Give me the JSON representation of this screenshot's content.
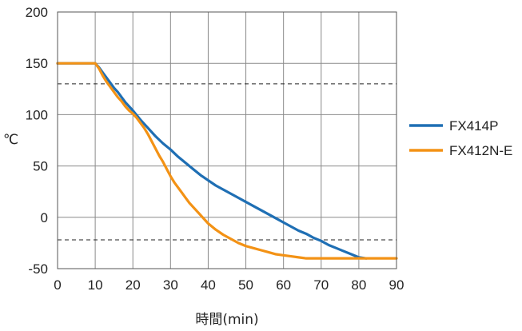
{
  "chart_data": {
    "type": "line",
    "title": "",
    "xlabel": "時間(min)",
    "ylabel": "℃",
    "xlim": [
      0,
      90
    ],
    "ylim": [
      -50,
      200
    ],
    "xticks": [
      0,
      10,
      20,
      30,
      40,
      50,
      60,
      70,
      80,
      90
    ],
    "yticks": [
      -50,
      0,
      50,
      100,
      150,
      200
    ],
    "xtick_labels": [
      "0",
      "10",
      "20",
      "30",
      "40",
      "50",
      "60",
      "70",
      "80",
      "90"
    ],
    "ytick_labels": [
      "-50",
      "0",
      "50",
      "100",
      "150",
      "200"
    ],
    "grid": true,
    "legend_position": "right",
    "reference_lines": [
      130,
      -22
    ],
    "series": [
      {
        "name": "FX414P",
        "color": "#1f6fb4",
        "x": [
          0,
          10,
          11,
          12,
          13,
          14,
          15,
          16,
          17,
          18,
          19,
          20,
          22,
          24,
          26,
          28,
          30,
          32,
          34,
          36,
          38,
          40,
          42,
          44,
          46,
          48,
          50,
          52,
          54,
          56,
          58,
          60,
          62,
          64,
          66,
          68,
          70,
          72,
          74,
          76,
          78,
          80,
          82
        ],
        "y": [
          150,
          150,
          146,
          141,
          136,
          131,
          126,
          122,
          117,
          112,
          108,
          104,
          95,
          87,
          79,
          72,
          66,
          59,
          53,
          47,
          41,
          36,
          31,
          27,
          23,
          19,
          15,
          11,
          7,
          3,
          -1,
          -5,
          -9,
          -13,
          -16,
          -20,
          -23,
          -27,
          -30,
          -33,
          -36,
          -39,
          -40
        ]
      },
      {
        "name": "FX412N-E",
        "color": "#f39215",
        "x": [
          0,
          10,
          11,
          12,
          13,
          14,
          15,
          16,
          17,
          18,
          19,
          20,
          21,
          22,
          23,
          24,
          25,
          26,
          27,
          28,
          29,
          30,
          31,
          32,
          33,
          34,
          35,
          36,
          37,
          38,
          39,
          40,
          42,
          44,
          46,
          48,
          50,
          52,
          54,
          56,
          58,
          60,
          62,
          64,
          66,
          70,
          80,
          90
        ],
        "y": [
          150,
          150,
          145,
          138,
          132,
          127,
          122,
          117,
          113,
          108,
          104,
          101,
          97,
          92,
          87,
          81,
          74,
          67,
          60,
          54,
          47,
          40,
          34,
          29,
          24,
          19,
          14,
          10,
          6,
          2,
          -2,
          -6,
          -12,
          -17,
          -21,
          -25,
          -28,
          -30,
          -32,
          -34,
          -36,
          -37,
          -38,
          -39,
          -40,
          -40,
          -40,
          -40
        ]
      }
    ]
  }
}
